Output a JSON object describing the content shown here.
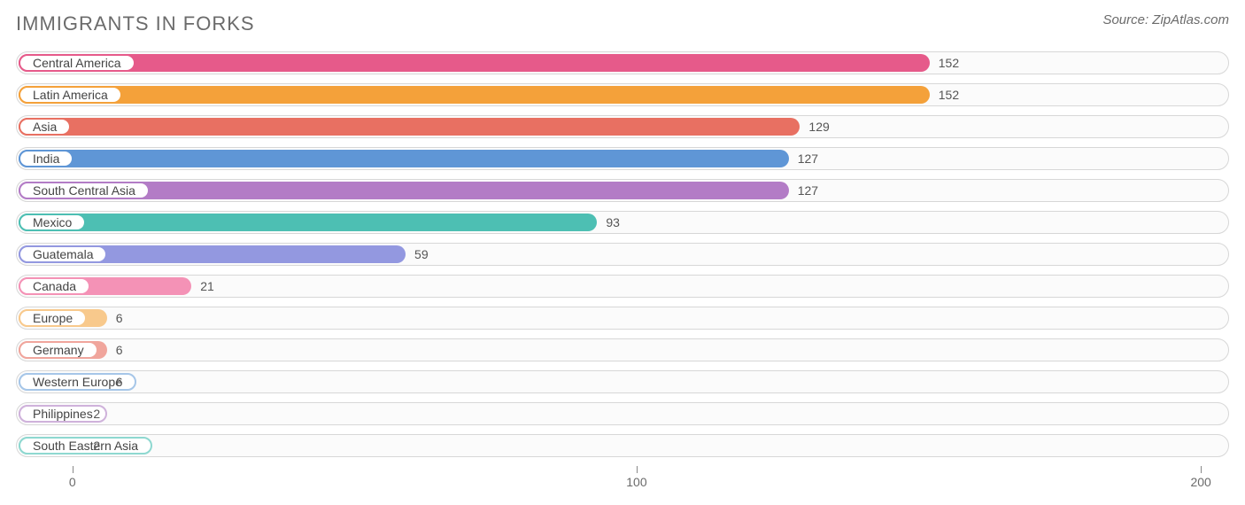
{
  "title": "IMMIGRANTS IN FORKS",
  "source": "Source: ZipAtlas.com",
  "chart": {
    "type": "bar-horizontal",
    "xlim": [
      -10,
      205
    ],
    "ticks": [
      0,
      100,
      200
    ],
    "track_border": "#d7d7d7",
    "track_bg": "#fbfbfb",
    "value_fontsize": 14,
    "label_fontsize": 14,
    "title_fontsize": 22,
    "title_color": "#6b6b6b",
    "source_fontsize": 15,
    "bars": [
      {
        "label": "Central America",
        "value": 152,
        "bar_color": "#e65a8a",
        "pill_border": "#e65a8a"
      },
      {
        "label": "Latin America",
        "value": 152,
        "bar_color": "#f4a13a",
        "pill_border": "#f4a13a"
      },
      {
        "label": "Asia",
        "value": 129,
        "bar_color": "#e87062",
        "pill_border": "#e87062"
      },
      {
        "label": "India",
        "value": 127,
        "bar_color": "#5f96d6",
        "pill_border": "#5f96d6"
      },
      {
        "label": "South Central Asia",
        "value": 127,
        "bar_color": "#b37cc6",
        "pill_border": "#b37cc6"
      },
      {
        "label": "Mexico",
        "value": 93,
        "bar_color": "#4dbfb3",
        "pill_border": "#4dbfb3"
      },
      {
        "label": "Guatemala",
        "value": 59,
        "bar_color": "#9398e0",
        "pill_border": "#9398e0"
      },
      {
        "label": "Canada",
        "value": 21,
        "bar_color": "#f492b6",
        "pill_border": "#f492b6"
      },
      {
        "label": "Europe",
        "value": 6,
        "bar_color": "#f8c98c",
        "pill_border": "#f8c98c"
      },
      {
        "label": "Germany",
        "value": 6,
        "bar_color": "#f0a59c",
        "pill_border": "#f0a59c"
      },
      {
        "label": "Western Europe",
        "value": 6,
        "bar_color": "#a6c6e8",
        "pill_border": "#a6c6e8"
      },
      {
        "label": "Philippines",
        "value": 2,
        "bar_color": "#cfb2db",
        "pill_border": "#cfb2db"
      },
      {
        "label": "South Eastern Asia",
        "value": 2,
        "bar_color": "#8ed8d0",
        "pill_border": "#8ed8d0"
      }
    ]
  }
}
